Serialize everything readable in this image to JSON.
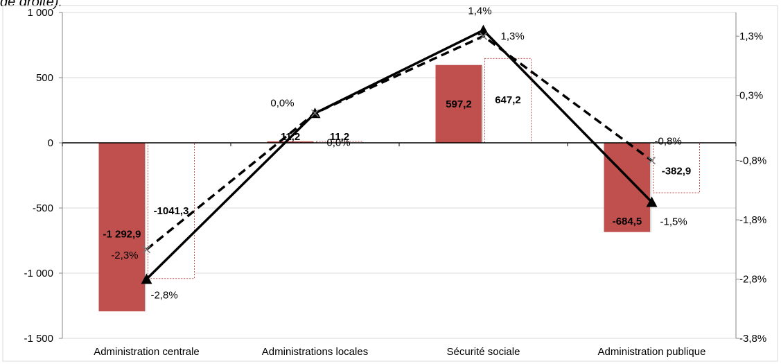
{
  "caption_fragment": "de droite).",
  "chart_data": {
    "type": "bar",
    "categories": [
      "Administration centrale",
      "Administrations locales",
      "Sécurité sociale",
      "Administration publique"
    ],
    "series": [
      {
        "kind": "bar",
        "style": "solid-fill",
        "color": "#c0504d",
        "values": [
          -1292.9,
          11.2,
          597.2,
          -684.5
        ],
        "labels": [
          "-1 292,9",
          "11,2",
          "597,2",
          "-684,5"
        ]
      },
      {
        "kind": "bar",
        "style": "dashed-outline",
        "color": "#c0504d",
        "values": [
          -1041.3,
          11.2,
          647.2,
          -382.9
        ],
        "labels": [
          "-1041,3",
          "11,2",
          "647,2",
          "-382,9"
        ]
      },
      {
        "kind": "line",
        "axis": "right",
        "style": "solid",
        "marker": "triangle",
        "values": [
          -2.8,
          0.0,
          1.4,
          -1.5
        ],
        "labels": [
          "-2,8%",
          "0,0%",
          "1,4%",
          "-1,5%"
        ]
      },
      {
        "kind": "line",
        "axis": "right",
        "style": "dashed",
        "marker": "x",
        "values": [
          -2.3,
          0.0,
          1.3,
          -0.8
        ],
        "labels": [
          "-2,3%",
          "0,0%",
          "1,3%",
          "-0,8%"
        ]
      }
    ],
    "ylim": [
      -1500,
      1000
    ],
    "yticks": [
      1000,
      500,
      0,
      -500,
      -1000,
      -1500
    ],
    "ytick_labels": [
      "1 000",
      "500",
      "0",
      "-500",
      "-1 000",
      "-1 500"
    ],
    "y2lim": [
      -3.8,
      1.7
    ],
    "y2ticks": [
      1.3,
      0.3,
      -0.8,
      -1.8,
      -2.8,
      -3.8
    ],
    "y2tick_labels": [
      "1,3%",
      "0,3%",
      "-0,8%",
      "-1,8%",
      "-2,8%",
      "-3,8%"
    ],
    "grid": true,
    "legend": "none"
  }
}
